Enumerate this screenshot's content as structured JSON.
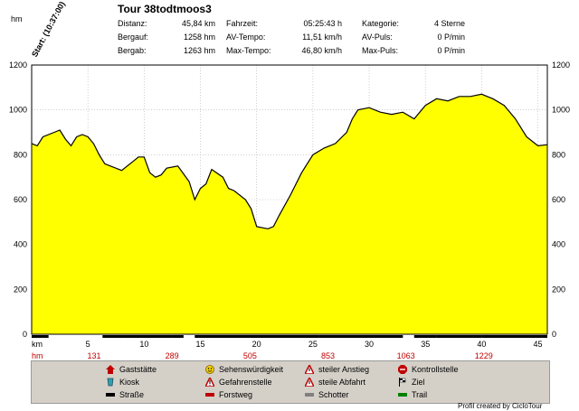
{
  "header": {
    "title": "Tour 38todtmoos3",
    "start_label": "Start: (10:37:00)",
    "unit_label": "hm",
    "stats": [
      {
        "label": "Distanz:",
        "value": "45,84 km"
      },
      {
        "label": "Bergauf:",
        "value": "1258 hm"
      },
      {
        "label": "Bergab:",
        "value": "1263 hm"
      },
      {
        "label": "Fahrzeit:",
        "value": "05:25:43 h"
      },
      {
        "label": "AV-Tempo:",
        "value": "11,51 km/h"
      },
      {
        "label": "Max-Tempo:",
        "value": "46,80 km/h"
      },
      {
        "label": "Kategorie:",
        "value": "4 Sterne"
      },
      {
        "label": "AV-Puls:",
        "value": "0 P/min"
      },
      {
        "label": "Max-Puls:",
        "value": "0 P/min"
      }
    ]
  },
  "chart_data": {
    "type": "area",
    "title": "Tour 38todtmoos3",
    "ylabel": "hm",
    "xlabel": "km",
    "xlim": [
      0,
      45.84
    ],
    "ylim": [
      0,
      1200
    ],
    "y_ticks": [
      0,
      200,
      400,
      600,
      800,
      1000,
      1200
    ],
    "x_ticks": [
      5,
      10,
      15,
      20,
      25,
      30,
      35,
      40,
      45
    ],
    "grid": true,
    "fill_color": "#ffff00",
    "x": [
      0,
      0.5,
      1,
      2,
      2.5,
      3,
      3.5,
      4,
      4.5,
      5,
      5.5,
      6,
      6.5,
      7,
      8,
      9,
      9.5,
      10,
      10.5,
      11,
      11.5,
      12,
      13,
      14,
      14.5,
      15,
      15.5,
      16,
      17,
      17.5,
      18,
      19,
      19.5,
      20,
      21,
      21.5,
      22,
      23,
      24,
      25,
      26,
      27,
      28,
      28.5,
      29,
      30,
      31,
      32,
      33,
      34,
      35,
      36,
      37,
      38,
      39,
      40,
      40.5,
      41,
      42,
      43,
      44,
      45,
      45.84
    ],
    "y": [
      850,
      840,
      880,
      900,
      910,
      870,
      840,
      880,
      890,
      880,
      850,
      800,
      760,
      750,
      730,
      770,
      790,
      790,
      720,
      700,
      710,
      740,
      750,
      680,
      600,
      650,
      670,
      735,
      700,
      650,
      640,
      600,
      560,
      480,
      470,
      480,
      530,
      620,
      720,
      800,
      830,
      850,
      900,
      960,
      1000,
      1010,
      990,
      980,
      990,
      960,
      1020,
      1050,
      1040,
      1060,
      1060,
      1070,
      1060,
      1050,
      1020,
      960,
      880,
      840,
      845
    ],
    "hm_row": {
      "label": "hm",
      "values": [
        "131",
        "289",
        "505",
        "853",
        "1063",
        "1229"
      ]
    },
    "surface_segments": [
      [
        0,
        1.5
      ],
      [
        6.3,
        8.2
      ],
      [
        8.2,
        12.5
      ],
      [
        12.5,
        13.5
      ],
      [
        14.5,
        25.5
      ],
      [
        25.5,
        33
      ],
      [
        34,
        36
      ],
      [
        36,
        40
      ],
      [
        40,
        45.84
      ]
    ]
  },
  "legend": {
    "items": [
      {
        "label": "Gaststätte",
        "icon": "house-icon"
      },
      {
        "label": "Sehenswürdigkeit",
        "icon": "smiley-icon"
      },
      {
        "label": "steiler Anstieg",
        "icon": "warning-triangle-icon"
      },
      {
        "label": "Kontrollstelle",
        "icon": "stop-sign-icon"
      },
      {
        "label": "Kiosk",
        "icon": "kiosk-icon"
      },
      {
        "label": "Gefahrenstelle",
        "icon": "danger-triangle-icon"
      },
      {
        "label": "steile Abfahrt",
        "icon": "warning-triangle-icon"
      },
      {
        "label": "Ziel",
        "icon": "finish-flag-icon"
      },
      {
        "label": "Straße",
        "icon": "road-bar-icon"
      },
      {
        "label": "Forstweg",
        "icon": "forest-road-bar-icon"
      },
      {
        "label": "Schotter",
        "icon": "gravel-bar-icon"
      },
      {
        "label": "Trail",
        "icon": "trail-bar-icon"
      }
    ]
  },
  "footer": {
    "credit": "Profil created by CicloTour"
  }
}
